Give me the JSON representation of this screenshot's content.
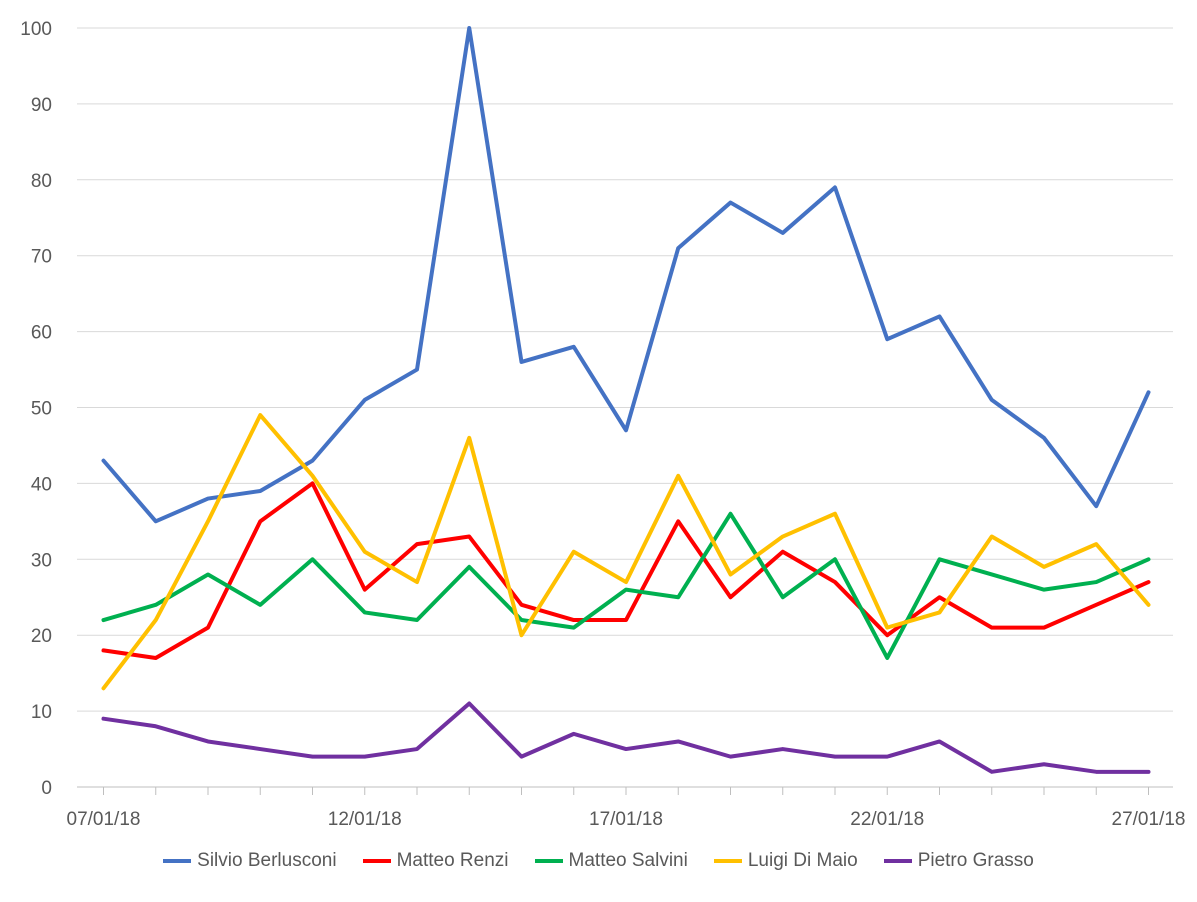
{
  "chart_data": {
    "type": "line",
    "title": "",
    "xlabel": "",
    "ylabel": "",
    "ylim": [
      0,
      100
    ],
    "yticks": [
      0,
      10,
      20,
      30,
      40,
      50,
      60,
      70,
      80,
      90,
      100
    ],
    "grid": "horizontal",
    "legend_position": "bottom",
    "x_tick_labels": [
      "07/01/18",
      "12/01/18",
      "17/01/18",
      "22/01/18",
      "27/01/18"
    ],
    "x": [
      "07/01/18",
      "08/01/18",
      "09/01/18",
      "10/01/18",
      "11/01/18",
      "12/01/18",
      "13/01/18",
      "14/01/18",
      "15/01/18",
      "16/01/18",
      "17/01/18",
      "18/01/18",
      "19/01/18",
      "20/01/18",
      "21/01/18",
      "22/01/18",
      "23/01/18",
      "24/01/18",
      "25/01/18",
      "26/01/18",
      "27/01/18"
    ],
    "series": [
      {
        "name": "Silvio Berlusconi",
        "color": "#4472C4",
        "values": [
          43,
          35,
          38,
          39,
          43,
          51,
          55,
          100,
          56,
          58,
          47,
          71,
          77,
          73,
          79,
          59,
          62,
          51,
          46,
          37,
          52
        ]
      },
      {
        "name": "Matteo Renzi",
        "color": "#FF0000",
        "values": [
          18,
          17,
          21,
          35,
          40,
          26,
          32,
          33,
          24,
          22,
          22,
          35,
          25,
          31,
          27,
          20,
          25,
          21,
          21,
          24,
          27
        ]
      },
      {
        "name": "Matteo Salvini",
        "color": "#00B050",
        "values": [
          22,
          24,
          28,
          24,
          30,
          23,
          22,
          29,
          22,
          21,
          26,
          25,
          36,
          25,
          30,
          17,
          30,
          28,
          26,
          27,
          30
        ]
      },
      {
        "name": "Luigi Di Maio",
        "color": "#FFC000",
        "values": [
          13,
          22,
          35,
          49,
          41,
          31,
          27,
          46,
          20,
          31,
          27,
          41,
          28,
          33,
          36,
          21,
          23,
          33,
          29,
          32,
          24
        ]
      },
      {
        "name": "Pietro Grasso",
        "color": "#7030A0",
        "values": [
          9,
          8,
          6,
          5,
          4,
          4,
          5,
          11,
          4,
          7,
          5,
          6,
          4,
          5,
          4,
          4,
          6,
          2,
          3,
          2,
          2
        ]
      }
    ]
  }
}
